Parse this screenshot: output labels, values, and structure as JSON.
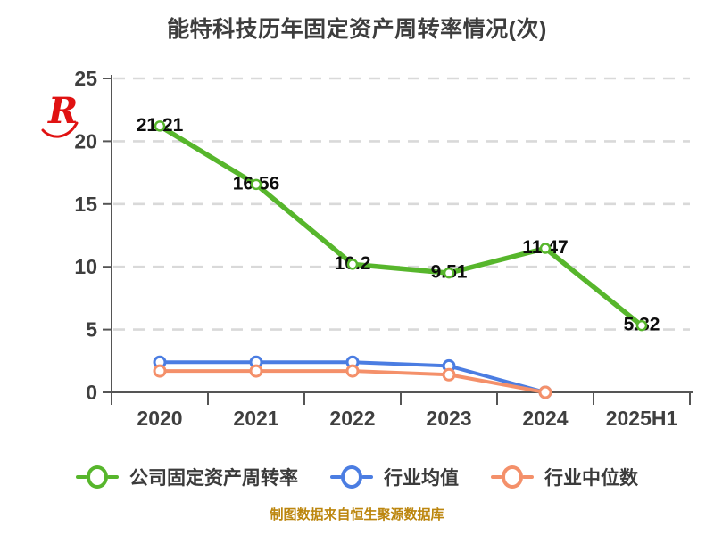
{
  "title": "能特科技历年固定资产周转率情况(次)",
  "watermark": {
    "letter": "R"
  },
  "footer": "制图数据来自恒生聚源数据库",
  "colors": {
    "company": "#57b62c",
    "industry_avg": "#4b7de2",
    "industry_median": "#f4906a",
    "grid": "#d9d9d9",
    "axis": "#555555",
    "tick_label": "#3f3f3f",
    "data_label": "#0d0d0d",
    "title": "#3d3d3d",
    "legend_label": "#3b3b3b",
    "footer": "#bc860e",
    "watermark": "#e01212",
    "marker_fill": "#ffffff"
  },
  "chart_data": {
    "type": "line",
    "categories": [
      "2020",
      "2021",
      "2022",
      "2023",
      "2024",
      "2025H1"
    ],
    "series": [
      {
        "name": "公司固定资产周转率",
        "color_key": "company",
        "values": [
          21.21,
          16.56,
          10.2,
          9.51,
          11.47,
          5.32
        ],
        "labels": [
          "21.21",
          "16.56",
          "10.2",
          "9.51",
          "11.47",
          "5.32"
        ]
      },
      {
        "name": "行业均值",
        "color_key": "industry_avg",
        "values": [
          2.4,
          2.4,
          2.4,
          2.1,
          0,
          null
        ],
        "labels": null
      },
      {
        "name": "行业中位数",
        "color_key": "industry_median",
        "values": [
          1.7,
          1.7,
          1.7,
          1.4,
          0,
          null
        ],
        "labels": null
      }
    ],
    "title": "能特科技历年固定资产周转率情况(次)",
    "xlabel": "",
    "ylabel": "",
    "ylim": [
      0,
      25
    ],
    "yticks": [
      0,
      5,
      10,
      15,
      20,
      25
    ],
    "grid": "horizontal-dashed",
    "legend_position": "bottom"
  }
}
